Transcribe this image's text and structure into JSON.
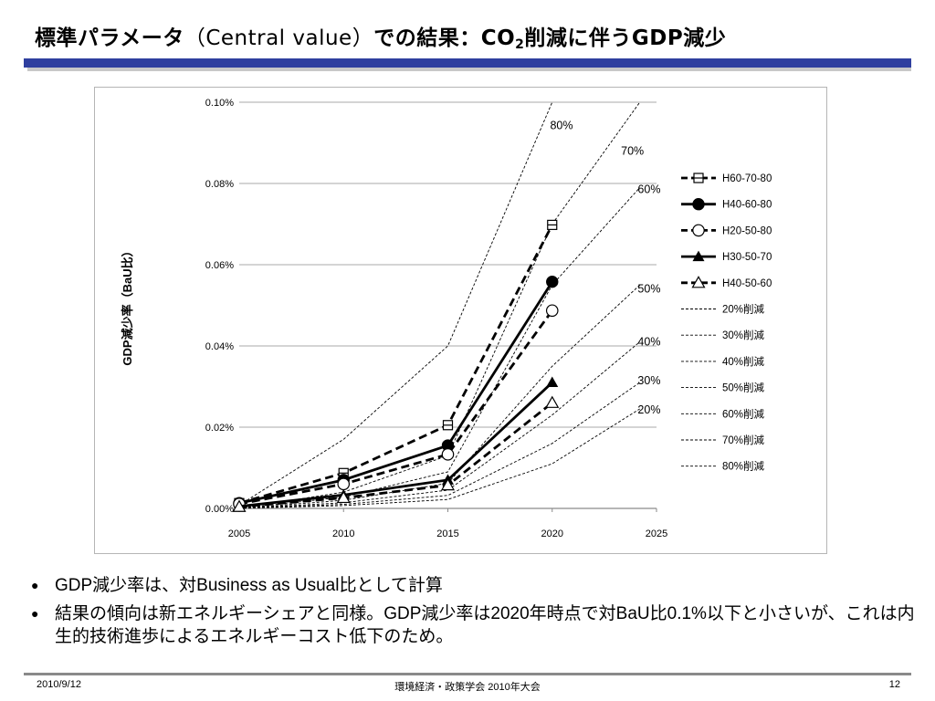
{
  "title": {
    "main": "標準パラメータ",
    "paren": "（Central value）",
    "rest": "での結果：CO",
    "sub": "2",
    "tail": "削減に伴うGDP減少"
  },
  "chart_data": {
    "type": "line",
    "x": [
      2005,
      2010,
      2015,
      2020
    ],
    "xticks": [
      "2005",
      "2010",
      "2015",
      "2020",
      "2025"
    ],
    "xlim": [
      2005,
      2025
    ],
    "yticks": [
      "0.00%",
      "0.02%",
      "0.04%",
      "0.06%",
      "0.08%",
      "0.10%"
    ],
    "ylim": [
      0,
      0.1
    ],
    "ylabel": "GDP減少率（BaU比）",
    "grid": "horizontal",
    "legend_position": "right",
    "series": [
      {
        "name": "H60-70-80",
        "style": "dashed-thick",
        "marker": "square-half",
        "values": [
          0.0013,
          0.0087,
          0.0205,
          0.0698
        ]
      },
      {
        "name": "H40-60-80",
        "style": "solid-thick",
        "marker": "circle-filled",
        "values": [
          0.0013,
          0.007,
          0.0155,
          0.0558
        ]
      },
      {
        "name": "H20-50-80",
        "style": "dashed-thick",
        "marker": "circle-open",
        "values": [
          0.0011,
          0.006,
          0.0133,
          0.0487
        ]
      },
      {
        "name": "H30-50-70",
        "style": "solid-thick",
        "marker": "triangle-filled",
        "values": [
          0.0005,
          0.0033,
          0.007,
          0.031
        ]
      },
      {
        "name": "H40-50-60",
        "style": "dashed-thick",
        "marker": "triangle-open",
        "values": [
          0.0004,
          0.0026,
          0.0057,
          0.026
        ]
      },
      {
        "name": "20%削減",
        "style": "dashed-thin",
        "values": [
          0,
          0.0007,
          0.0022,
          0.011
        ],
        "extend_2025": 0.0245,
        "label": "20%"
      },
      {
        "name": "30%削減",
        "style": "dashed-thin",
        "values": [
          0,
          0.001,
          0.0032,
          0.016
        ],
        "extend_2025": 0.031,
        "label": "30%"
      },
      {
        "name": "40%削減",
        "style": "dashed-thin",
        "values": [
          0,
          0.0014,
          0.0045,
          0.023
        ],
        "extend_2025": 0.041,
        "label": "40%"
      },
      {
        "name": "50%削減",
        "style": "dashed-thin",
        "values": [
          0,
          0.002,
          0.0062,
          0.035
        ],
        "extend_2025": 0.055,
        "label": "50%"
      },
      {
        "name": "60%削減",
        "style": "dashed-thin",
        "values": [
          0,
          0.0028,
          0.009,
          0.055
        ],
        "extend_2025": 0.079,
        "label": "60%"
      },
      {
        "name": "70%削減",
        "style": "dashed-thin",
        "values": [
          0,
          0.004,
          0.013,
          0.07
        ],
        "extend_2025": 0.1,
        "label": "70%"
      },
      {
        "name": "80%削減",
        "style": "dashed-thin",
        "values": [
          0.0008,
          0.017,
          0.04,
          0.1
        ],
        "extend_2025": null,
        "label": "80%"
      }
    ],
    "curve_labels": [
      {
        "text": "80%",
        "x": 2019.9,
        "y": 0.0943
      },
      {
        "text": "70%",
        "x": 2023.3,
        "y": 0.088
      },
      {
        "text": "60%",
        "x": 2024.1,
        "y": 0.0785
      },
      {
        "text": "50%",
        "x": 2024.1,
        "y": 0.054
      },
      {
        "text": "40%",
        "x": 2024.1,
        "y": 0.041
      },
      {
        "text": "30%",
        "x": 2024.1,
        "y": 0.0315
      },
      {
        "text": "20%",
        "x": 2024.1,
        "y": 0.0243
      }
    ]
  },
  "bullets": [
    "GDP減少率は、対Business as Usual比として計算",
    "結果の傾向は新エネルギーシェアと同様。GDP減少率は2020年時点で対BaU比0.1%以下と小さいが、これは内生的技術進歩によるエネルギーコスト低下のため。"
  ],
  "footer": {
    "date": "2010/9/12",
    "event": "環境経済・政策学会 2010年大会",
    "page": "12"
  }
}
